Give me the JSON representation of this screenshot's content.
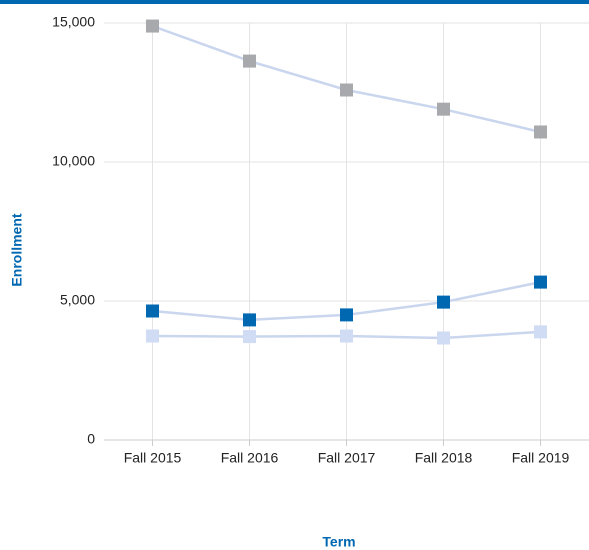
{
  "chart_data": {
    "type": "line",
    "x_label": "Term",
    "y_label": "Enrollment",
    "categories": [
      "Fall 2015",
      "Fall 2016",
      "Fall 2017",
      "Fall 2018",
      "Fall 2019"
    ],
    "series": [
      {
        "color": "#a7a9ac",
        "line_color": "#c9d6ee",
        "values": [
          14890,
          13630,
          12590,
          11900,
          11080
        ]
      },
      {
        "color": "#0067b1",
        "line_color": "#c9d6ee",
        "values": [
          4640,
          4320,
          4500,
          4960,
          5680
        ]
      },
      {
        "color": "#d0dcf3",
        "line_color": "#c9d6ee",
        "values": [
          3740,
          3720,
          3740,
          3670,
          3890
        ]
      }
    ],
    "ylim": [
      0,
      15000
    ],
    "yticks": [
      0,
      {
        "value": 5000,
        "label": "5,000"
      },
      {
        "value": 10000,
        "label": "10,000"
      },
      {
        "value": 15000,
        "label": "15,000"
      }
    ],
    "grid": true
  }
}
